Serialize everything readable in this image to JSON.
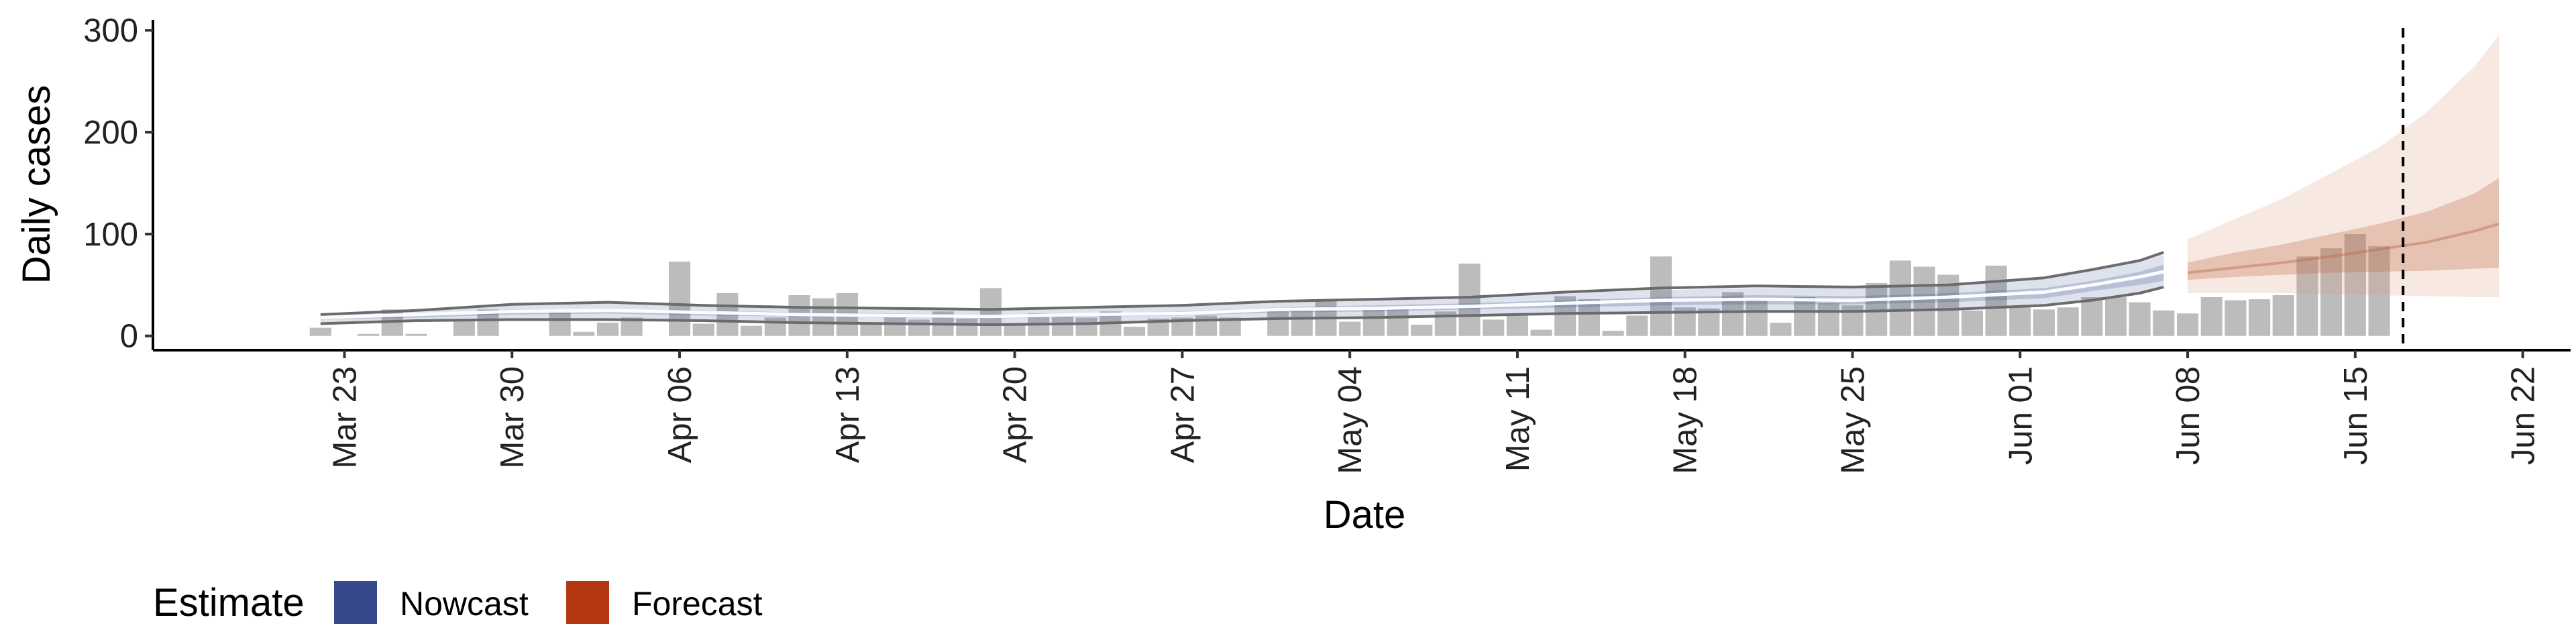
{
  "chart_data": {
    "type": "bar",
    "xlabel": "Date",
    "ylabel": "Daily cases",
    "ylim": [
      -14,
      310
    ],
    "y_ticks": [
      0,
      100,
      200,
      300
    ],
    "x_ticks": [
      {
        "label": "Mar 23",
        "date": "2020-03-23"
      },
      {
        "label": "Mar 30",
        "date": "2020-03-30"
      },
      {
        "label": "Apr 06",
        "date": "2020-04-06"
      },
      {
        "label": "Apr 13",
        "date": "2020-04-13"
      },
      {
        "label": "Apr 20",
        "date": "2020-04-20"
      },
      {
        "label": "Apr 27",
        "date": "2020-04-27"
      },
      {
        "label": "May 04",
        "date": "2020-05-04"
      },
      {
        "label": "May 11",
        "date": "2020-05-11"
      },
      {
        "label": "May 18",
        "date": "2020-05-18"
      },
      {
        "label": "May 25",
        "date": "2020-05-25"
      },
      {
        "label": "Jun 01",
        "date": "2020-06-01"
      },
      {
        "label": "Jun 08",
        "date": "2020-06-08"
      },
      {
        "label": "Jun 15",
        "date": "2020-06-15"
      },
      {
        "label": "Jun 22",
        "date": "2020-06-22"
      }
    ],
    "xlim": [
      "2020-03-15",
      "2020-06-24"
    ],
    "reference_line_date": "2020-06-17",
    "observed_cases": {
      "start_date": "2020-03-22",
      "color": "#a6a6a6",
      "values": [
        8,
        0,
        2,
        26,
        2,
        0,
        15,
        26,
        0,
        0,
        24,
        4,
        13,
        18,
        0,
        73,
        12,
        42,
        10,
        18,
        40,
        37,
        42,
        11,
        18,
        16,
        24,
        17,
        47,
        12,
        22,
        22,
        18,
        24,
        9,
        17,
        18,
        20,
        18,
        0,
        24,
        28,
        36,
        14,
        28,
        27,
        11,
        24,
        71,
        16,
        21,
        6,
        39,
        36,
        5,
        20,
        78,
        28,
        27,
        43,
        36,
        13,
        38,
        32,
        30,
        52,
        74,
        68,
        60,
        25,
        69,
        28,
        26,
        28,
        38,
        38,
        33,
        25,
        22,
        38,
        35,
        36,
        40,
        78,
        86,
        100,
        88
      ]
    },
    "legend": {
      "title": "Estimate",
      "position": "bottom-left",
      "entries": [
        {
          "label": "Nowcast",
          "color": "#34488a"
        },
        {
          "label": "Forecast",
          "color": "#b33710"
        }
      ]
    },
    "series": [
      {
        "name": "Nowcast",
        "dates": [
          "2020-03-22",
          "2020-03-26",
          "2020-03-30",
          "2020-04-03",
          "2020-04-07",
          "2020-04-11",
          "2020-04-15",
          "2020-04-19",
          "2020-04-23",
          "2020-04-27",
          "2020-05-01",
          "2020-05-05",
          "2020-05-09",
          "2020-05-13",
          "2020-05-17",
          "2020-05-21",
          "2020-05-25",
          "2020-05-29",
          "2020-06-02",
          "2020-06-04",
          "2020-06-06",
          "2020-06-07"
        ],
        "lower_90": [
          13,
          16,
          17,
          17,
          16,
          14,
          13,
          12,
          13,
          16,
          18,
          19,
          21,
          23,
          24,
          25,
          25,
          27,
          31,
          36,
          43,
          47
        ],
        "upper_90": [
          21,
          25,
          30,
          32,
          29,
          27,
          26,
          25,
          27,
          29,
          33,
          35,
          37,
          42,
          45,
          47,
          47,
          49,
          56,
          64,
          73,
          80
        ],
        "lower_50": [
          16,
          18,
          21,
          22,
          20,
          19,
          18,
          17,
          19,
          20,
          23,
          24,
          26,
          28,
          30,
          31,
          31,
          33,
          37,
          44,
          50,
          54
        ],
        "upper_50": [
          19,
          22,
          26,
          26,
          25,
          23,
          22,
          20,
          22,
          24,
          28,
          30,
          32,
          35,
          38,
          40,
          39,
          42,
          47,
          54,
          63,
          70
        ],
        "median": [
          18,
          21,
          24,
          25,
          23,
          21,
          20,
          19,
          21,
          22,
          26,
          27,
          29,
          32,
          35,
          36,
          35,
          38,
          43,
          50,
          58,
          63
        ],
        "upper_line": [
          21,
          25,
          31,
          33,
          30,
          28,
          27,
          26,
          28,
          30,
          34,
          36,
          38,
          43,
          47,
          49,
          48,
          50,
          57,
          65,
          74,
          82
        ],
        "lower_line": [
          12,
          15,
          16,
          16,
          15,
          13,
          12,
          11,
          12,
          15,
          17,
          18,
          20,
          22,
          23,
          24,
          24,
          26,
          30,
          35,
          42,
          48
        ]
      },
      {
        "name": "Forecast",
        "dates": [
          "2020-06-08",
          "2020-06-10",
          "2020-06-12",
          "2020-06-14",
          "2020-06-16",
          "2020-06-18",
          "2020-06-20",
          "2020-06-21"
        ],
        "lower_90": [
          42,
          42,
          42,
          41,
          40,
          39,
          38,
          38
        ],
        "upper_90": [
          95,
          115,
          135,
          160,
          185,
          220,
          265,
          295
        ],
        "lower_50": [
          55,
          58,
          60,
          62,
          63,
          64,
          66,
          67
        ],
        "upper_50": [
          72,
          82,
          90,
          100,
          110,
          122,
          140,
          155
        ],
        "median": [
          62,
          67,
          72,
          78,
          85,
          92,
          103,
          110
        ]
      }
    ]
  }
}
